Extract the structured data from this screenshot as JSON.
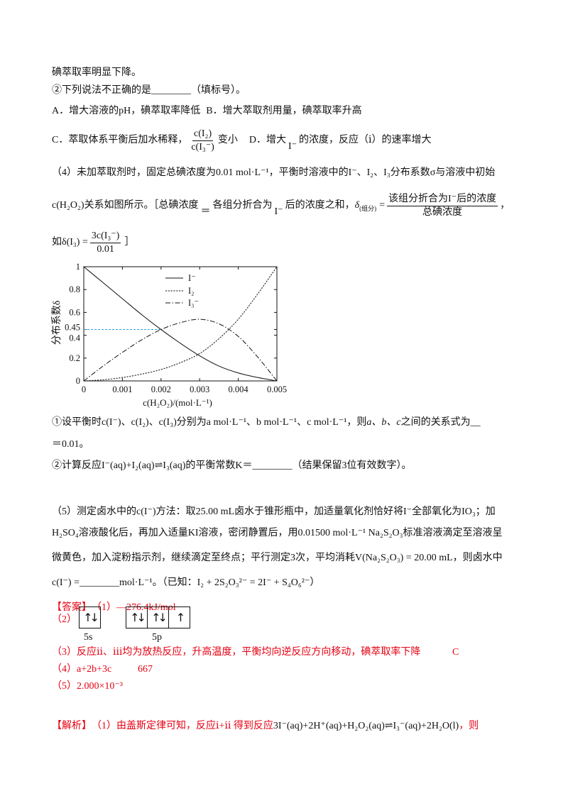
{
  "carryover": {
    "text": "碘萃取率明显下降。"
  },
  "q3": {
    "stem": "②下列说法不正确的是",
    "blank": "________",
    "note": "（填标号）。",
    "option_a": "A．增大溶液的pH，碘萃取率降低",
    "option_b": "B．增大萃取剂用量，碘萃取率升高",
    "option_c_pre": "C．萃取体系平衡后加水稀释，",
    "option_c_num": "c(I₂)",
    "option_c_den": "c(I₃⁻)",
    "option_c_post": "变小",
    "option_d_pre": "D．增大",
    "option_d_ion": "I⁻",
    "option_d_post": "的浓度，反应（ⅰ）的速率增大"
  },
  "q4": {
    "line1": "（4）未加萃取剂时，固定总碘浓度为0.01 mol·L⁻¹，平衡时溶液中的I⁻、I₂、I₃分布系数σ与溶液中初始",
    "line2_a": "c(H₂O₂)关系如图所示。［总碘浓度",
    "line2_eq": "＝",
    "line2_b": "各组分折合为",
    "line2_ion": "I⁻",
    "line2_c": "后的浓度之和，",
    "delta_symbol": "δ",
    "delta_sub": "(组分)",
    "delta_eq": "=",
    "delta_num": "该组分折合为I⁻后的浓度",
    "delta_den": "总碘浓度",
    "line2_end": "，",
    "line3_pre": "如δ(I₃) =",
    "line3_num": "3c(I₃⁻)",
    "line3_den": "0.01",
    "line3_end": "］"
  },
  "chart_data": {
    "type": "line",
    "x": [
      0,
      0.0005,
      0.001,
      0.0015,
      0.002,
      0.0025,
      0.003,
      0.0035,
      0.004,
      0.0045,
      0.005
    ],
    "series": [
      {
        "name": "I⁻",
        "line_style": "solid",
        "values": [
          1,
          0.86,
          0.72,
          0.58,
          0.45,
          0.33,
          0.22,
          0.13,
          0.07,
          0.03,
          0
        ]
      },
      {
        "name": "I₂",
        "line_style": "dotted",
        "values": [
          0,
          0.01,
          0.03,
          0.06,
          0.1,
          0.16,
          0.24,
          0.37,
          0.54,
          0.76,
          1
        ]
      },
      {
        "name": "I₃⁻",
        "line_style": "dash-dot",
        "values": [
          0,
          0.13,
          0.25,
          0.36,
          0.45,
          0.51,
          0.54,
          0.5,
          0.39,
          0.21,
          0
        ]
      }
    ],
    "xlabel": "c(H₂O₂)/(mol·L⁻¹)",
    "ylabel": "分布系数δ",
    "xlim": [
      0,
      0.005
    ],
    "ylim": [
      0,
      1
    ],
    "x_ticks": [
      0,
      0.001,
      0.002,
      0.003,
      0.004,
      0.005
    ],
    "x_tick_labels": [
      "0",
      "0.001",
      "0.002",
      "0.003",
      "0.004",
      "0.005"
    ],
    "y_ticks": [
      0,
      0.2,
      0.4,
      0.45,
      0.6,
      0.8,
      1
    ],
    "y_tick_labels": [
      "0",
      "0.2",
      "0.4",
      "0.45",
      "0.6",
      "0.8",
      "1"
    ],
    "reference_line": {
      "y": 0.45,
      "x_end": 0.002,
      "style": "dashed",
      "color": "#2aa0dc"
    },
    "legend_position": "top-center",
    "grid": false
  },
  "q4_1": {
    "pre": "①设平衡时c(I⁻)、c(I₂)、c(I₃)分别为a mol·L⁻¹、b mol·L⁻¹、c mol·L⁻¹，则",
    "vars": "a、b、c",
    "post": "之间的关系式为",
    "blank": "__",
    "line2": "＝0.01。"
  },
  "q4_2": {
    "pre": "②计算反应I⁻(aq)+I₂(aq)⇌I₃(aq)的平衡常数K＝",
    "blank": "________",
    "note": "（结果保留3位有效数字）。"
  },
  "q5": {
    "line1": "（5）测定卤水中的c(I⁻)方法：取25.00 mL卤水于锥形瓶中，加适量氧化剂恰好将I⁻全部氧化为IO₃；加",
    "line2": "H₂SO₄溶液酸化后，再加入适量KI溶液，密闭静置后，用0.01500 mol·L⁻¹ Na₂S₂O₃标准溶液滴定至溶液呈",
    "line3": "微黄色，加入淀粉指示剂，继续滴定至终点；平行测定3次，平均消耗V(Na₂S₂O₃) = 20.00 mL，则卤水中",
    "line4_pre": "c(I⁻) =",
    "line4_blank": "________",
    "line4_post": "mol·L⁻¹。（已知：I₂ + 2S₂O₃²⁻ = 2I⁻ + S₄O₆²⁻）"
  },
  "answer": {
    "label": "【答案】",
    "a1": "（1）—276.4kJ/mol",
    "a2_label": "（2）",
    "orbital_5s": [
      "↑↓"
    ],
    "orbital_5p": [
      "↑↓",
      "↑↓",
      "↑"
    ],
    "label_5s": "5s",
    "label_5p": "5p",
    "a3": "（3）反应ⅱ、ⅲ均为放热反应，升高温度，平衡均向逆反应方向移动，碘萃取率下降",
    "a3_choice": "C",
    "a4": "（4）a+2b+3c",
    "a4_k": "667",
    "a5": "（5）2.000×10⁻³"
  },
  "analysis": {
    "label": "【解析】",
    "text": "（1）由盖斯定律可知，反应ⅰ+ⅱ 得到反应",
    "equation": "3I⁻(aq)+2H⁺(aq)+H₂O₂(aq)⇌I₃⁻(aq)+2H₂O(l)",
    "end": "，则"
  }
}
